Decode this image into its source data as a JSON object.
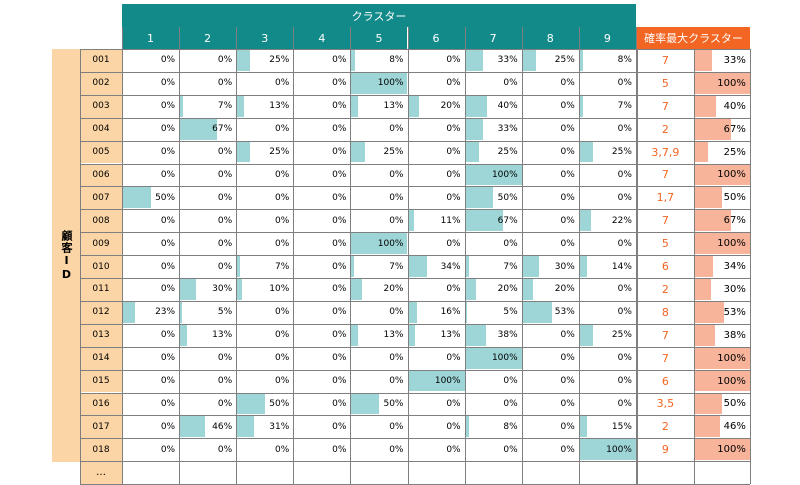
{
  "header": {
    "cluster_group": "クラスター",
    "cluster_columns": [
      "1",
      "2",
      "3",
      "4",
      "5",
      "6",
      "7",
      "8",
      "9"
    ],
    "max_cluster": "確率最大クラスター"
  },
  "row_group_label": "顧客ID",
  "rows": [
    {
      "id": "001",
      "values": [
        0,
        0,
        25,
        0,
        8,
        0,
        33,
        25,
        8
      ],
      "max_cluster": "7",
      "max_pct": 33
    },
    {
      "id": "002",
      "values": [
        0,
        0,
        0,
        0,
        100,
        0,
        0,
        0,
        0
      ],
      "max_cluster": "5",
      "max_pct": 100
    },
    {
      "id": "003",
      "values": [
        0,
        7,
        13,
        0,
        13,
        20,
        40,
        0,
        7
      ],
      "max_cluster": "7",
      "max_pct": 40
    },
    {
      "id": "004",
      "values": [
        0,
        67,
        0,
        0,
        0,
        0,
        33,
        0,
        0
      ],
      "max_cluster": "2",
      "max_pct": 67
    },
    {
      "id": "005",
      "values": [
        0,
        0,
        25,
        0,
        25,
        0,
        25,
        0,
        25
      ],
      "max_cluster": "3,7,9",
      "max_pct": 25
    },
    {
      "id": "006",
      "values": [
        0,
        0,
        0,
        0,
        0,
        0,
        100,
        0,
        0
      ],
      "max_cluster": "7",
      "max_pct": 100
    },
    {
      "id": "007",
      "values": [
        50,
        0,
        0,
        0,
        0,
        0,
        50,
        0,
        0
      ],
      "max_cluster": "1,7",
      "max_pct": 50
    },
    {
      "id": "008",
      "values": [
        0,
        0,
        0,
        0,
        0,
        11,
        67,
        0,
        22
      ],
      "max_cluster": "7",
      "max_pct": 67
    },
    {
      "id": "009",
      "values": [
        0,
        0,
        0,
        0,
        100,
        0,
        0,
        0,
        0
      ],
      "max_cluster": "5",
      "max_pct": 100
    },
    {
      "id": "010",
      "values": [
        0,
        0,
        7,
        0,
        7,
        34,
        7,
        30,
        14
      ],
      "max_cluster": "6",
      "max_pct": 34
    },
    {
      "id": "011",
      "values": [
        0,
        30,
        10,
        0,
        20,
        0,
        20,
        20,
        0
      ],
      "max_cluster": "2",
      "max_pct": 30
    },
    {
      "id": "012",
      "values": [
        23,
        5,
        0,
        0,
        0,
        16,
        5,
        53,
        0
      ],
      "max_cluster": "8",
      "max_pct": 53
    },
    {
      "id": "013",
      "values": [
        0,
        13,
        0,
        0,
        13,
        13,
        38,
        0,
        25
      ],
      "max_cluster": "7",
      "max_pct": 38
    },
    {
      "id": "014",
      "values": [
        0,
        0,
        0,
        0,
        0,
        0,
        100,
        0,
        0
      ],
      "max_cluster": "7",
      "max_pct": 100
    },
    {
      "id": "015",
      "values": [
        0,
        0,
        0,
        0,
        0,
        100,
        0,
        0,
        0
      ],
      "max_cluster": "6",
      "max_pct": 100
    },
    {
      "id": "016",
      "values": [
        0,
        0,
        50,
        0,
        50,
        0,
        0,
        0,
        0
      ],
      "max_cluster": "3,5",
      "max_pct": 50
    },
    {
      "id": "017",
      "values": [
        0,
        46,
        31,
        0,
        0,
        0,
        8,
        0,
        15
      ],
      "max_cluster": "2",
      "max_pct": 46
    },
    {
      "id": "018",
      "values": [
        0,
        0,
        0,
        0,
        0,
        0,
        0,
        0,
        100
      ],
      "max_cluster": "9",
      "max_pct": 100
    }
  ],
  "ellipsis_row": "…",
  "colors": {
    "teal": "#138a8a",
    "orange": "#f26522",
    "peach": "#fbd5a5",
    "teal_bar": "#9ed5d6",
    "orange_bar": "#f7b49b"
  }
}
